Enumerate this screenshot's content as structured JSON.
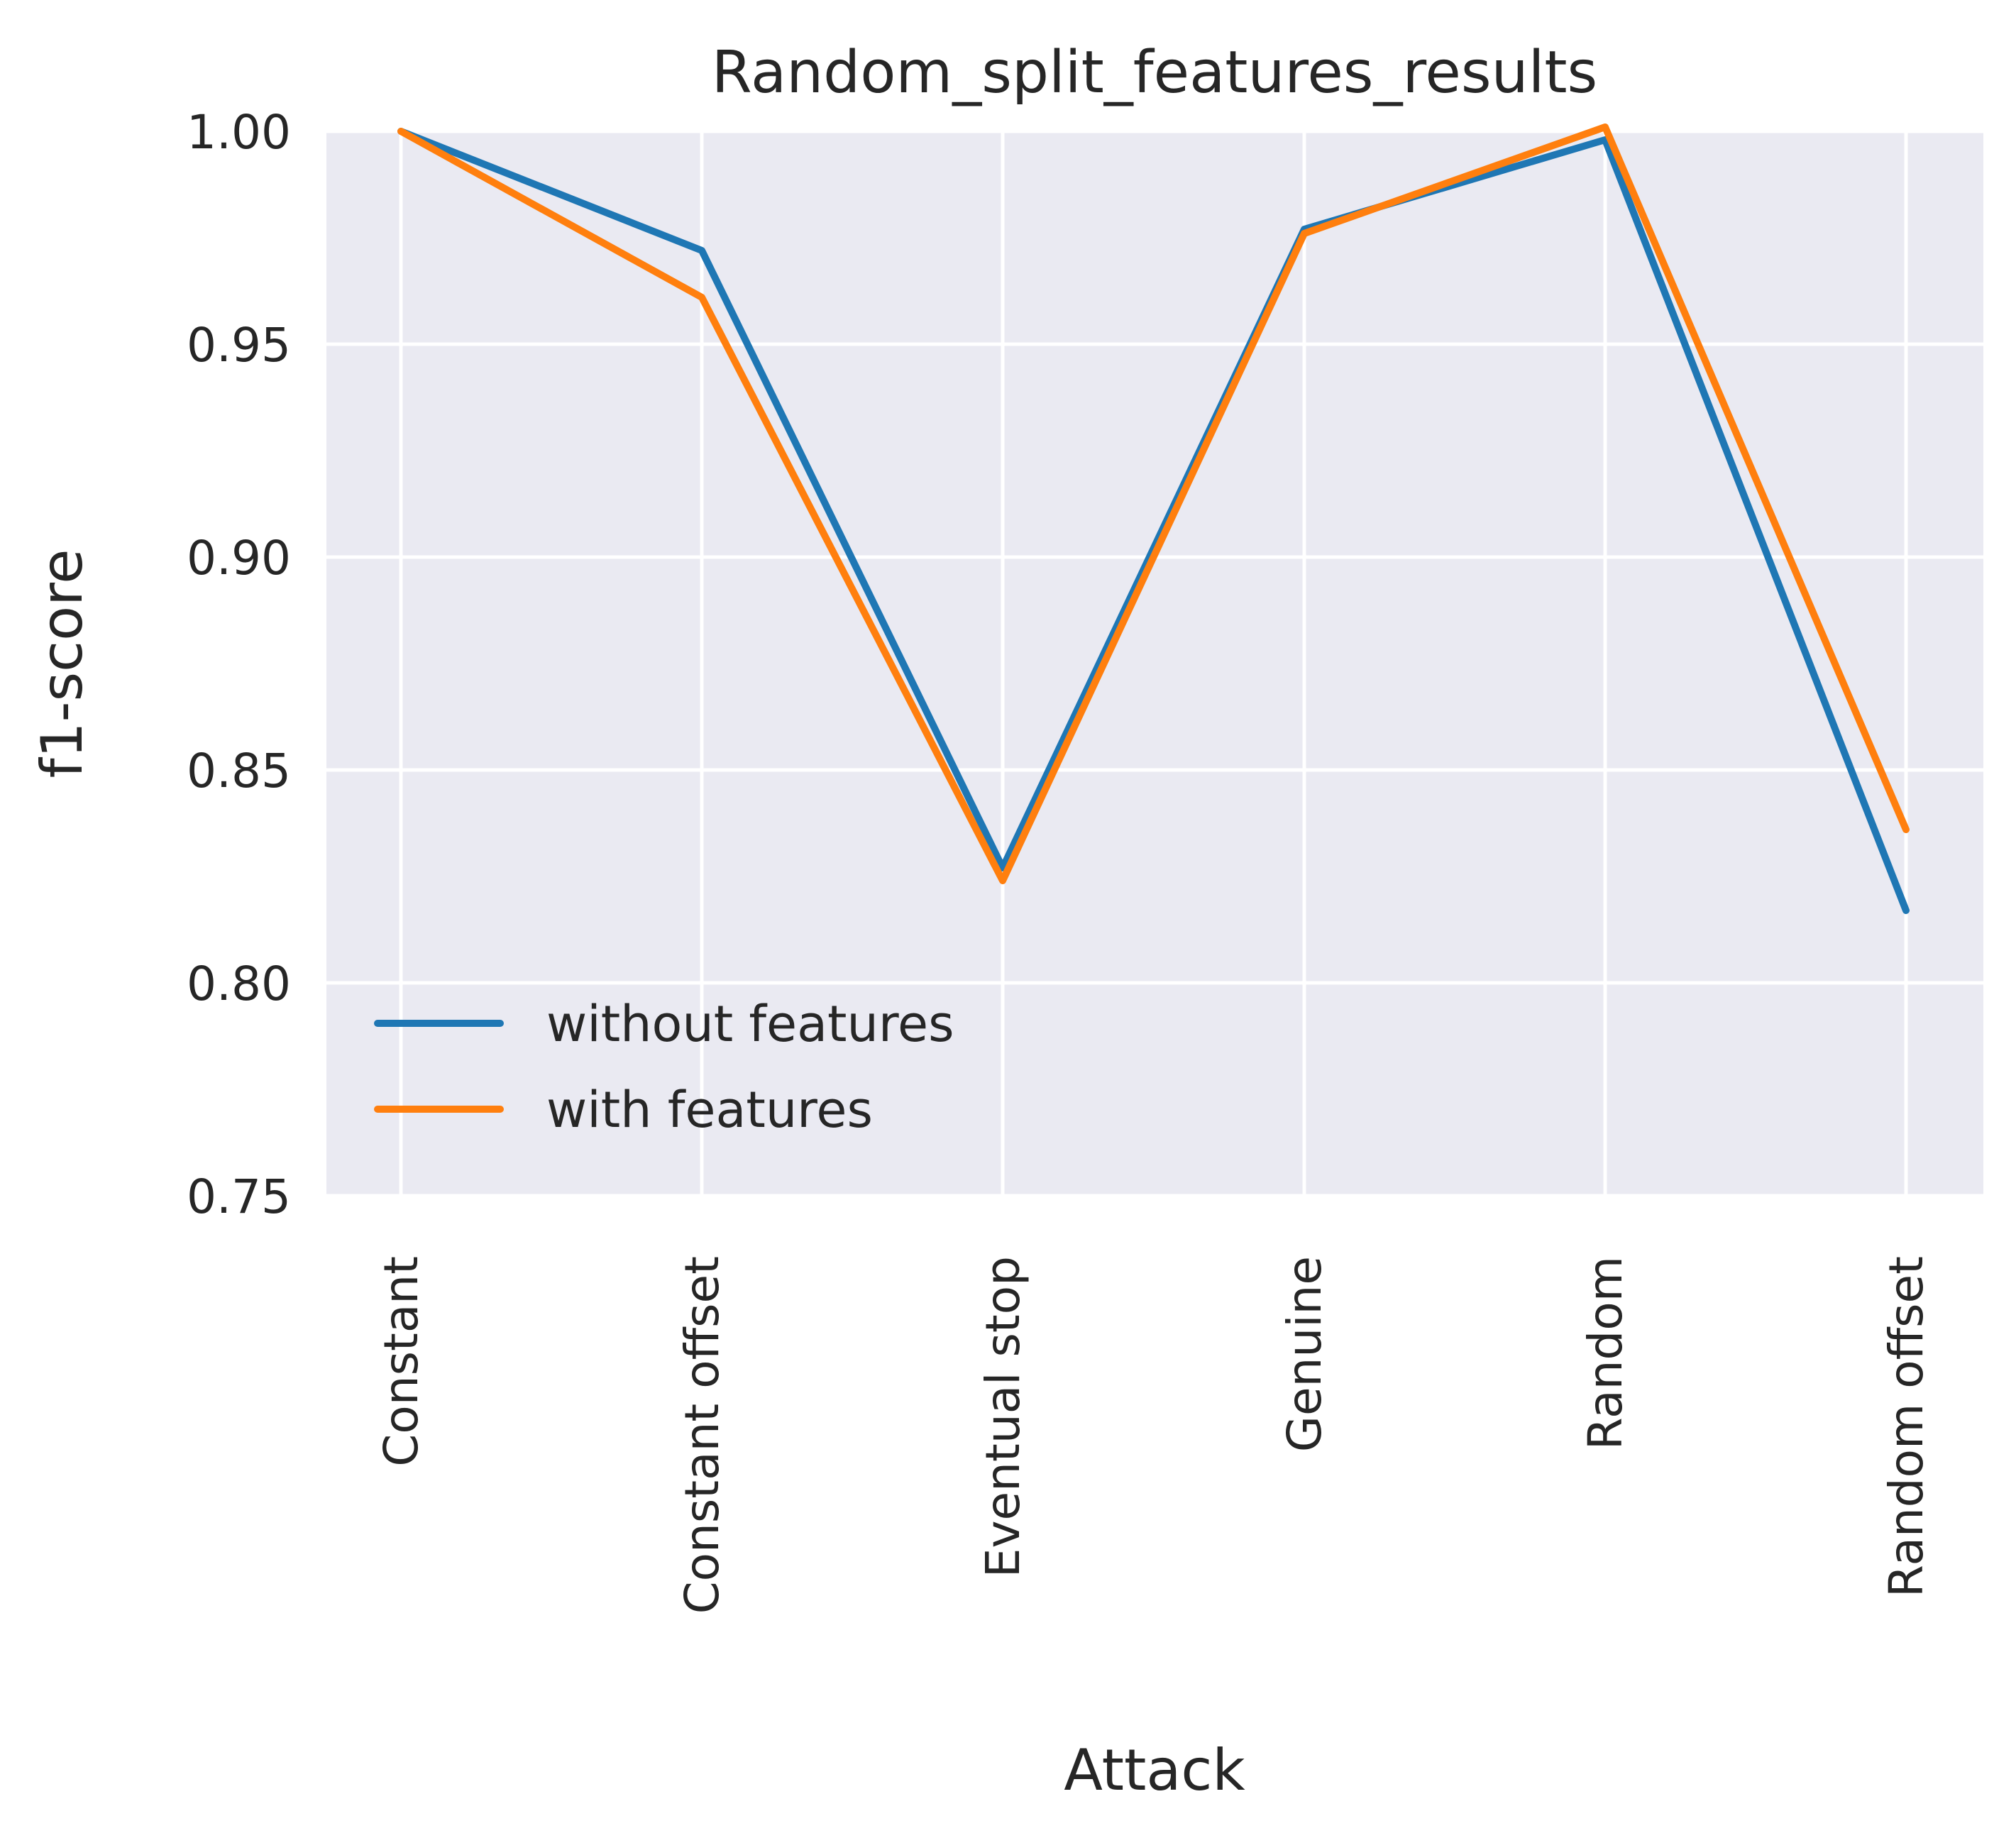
{
  "chart_data": {
    "type": "line",
    "title": "Random_split_features_results",
    "xlabel": "Attack",
    "ylabel": "f1-score",
    "categories": [
      "Constant",
      "Constant offset",
      "Eventual stop",
      "Genuine",
      "Random",
      "Random offset"
    ],
    "ylim": [
      0.75,
      1.0
    ],
    "yticks": [
      "0.75",
      "0.80",
      "0.85",
      "0.90",
      "0.95",
      "1.00"
    ],
    "grid": true,
    "legend_position": "lower-left",
    "series": [
      {
        "name": "without features",
        "color": "#1f77b4",
        "values": [
          1.0,
          0.972,
          0.827,
          0.977,
          0.998,
          0.817
        ]
      },
      {
        "name": "with features",
        "color": "#ff7f0e",
        "values": [
          1.0,
          0.961,
          0.824,
          0.976,
          1.001,
          0.836
        ]
      }
    ]
  }
}
